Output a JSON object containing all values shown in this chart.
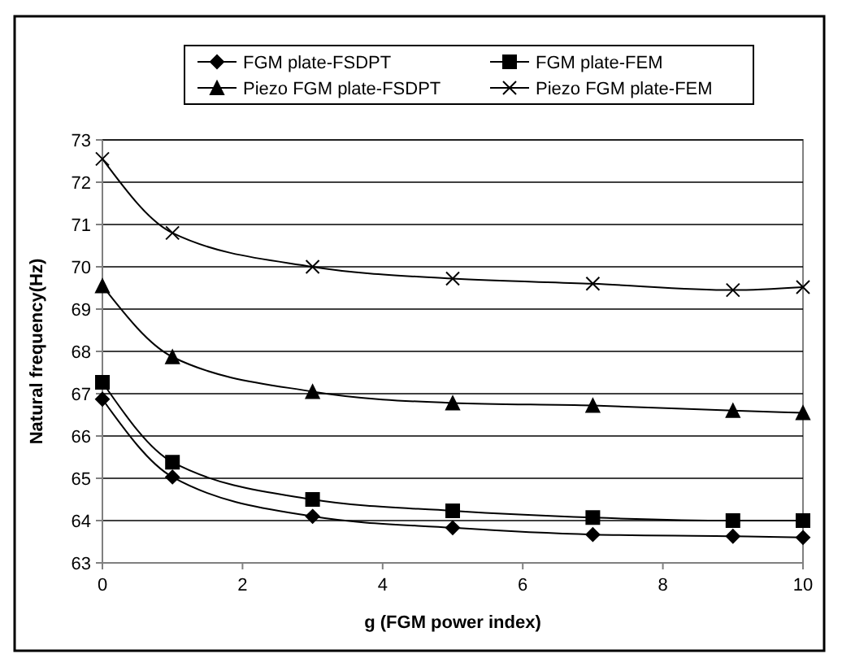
{
  "chart_data": {
    "type": "line",
    "xlabel": "g (FGM power index)",
    "ylabel": "Natural frequency(Hz)",
    "x": [
      0,
      1,
      3,
      5,
      7,
      9,
      10
    ],
    "series": [
      {
        "name": "FGM plate-FSDPT",
        "color": "#000000",
        "marker": "diamond",
        "values": [
          66.87,
          65.03,
          64.1,
          63.83,
          63.67,
          63.63,
          63.6
        ]
      },
      {
        "name": "FGM plate-FEM",
        "color": "#000000",
        "marker": "square",
        "values": [
          67.27,
          65.38,
          64.5,
          64.23,
          64.07,
          64.0,
          64.0
        ]
      },
      {
        "name": "Piezo FGM plate-FSDPT",
        "color": "#000000",
        "marker": "triangle",
        "values": [
          69.55,
          67.87,
          67.05,
          66.78,
          66.72,
          66.6,
          66.55
        ]
      },
      {
        "name": "Piezo FGM plate-FEM",
        "color": "#000000",
        "marker": "cross",
        "values": [
          72.55,
          70.8,
          70.0,
          69.72,
          69.6,
          69.45,
          69.52
        ]
      }
    ],
    "xlim": [
      0,
      10
    ],
    "xticks": [
      0,
      2,
      4,
      6,
      8,
      10
    ],
    "ylim": [
      63,
      73
    ],
    "yticks": [
      63,
      64,
      65,
      66,
      67,
      68,
      69,
      70,
      71,
      72,
      73
    ],
    "grid": "y",
    "legend": "top",
    "line_style": "solid"
  }
}
